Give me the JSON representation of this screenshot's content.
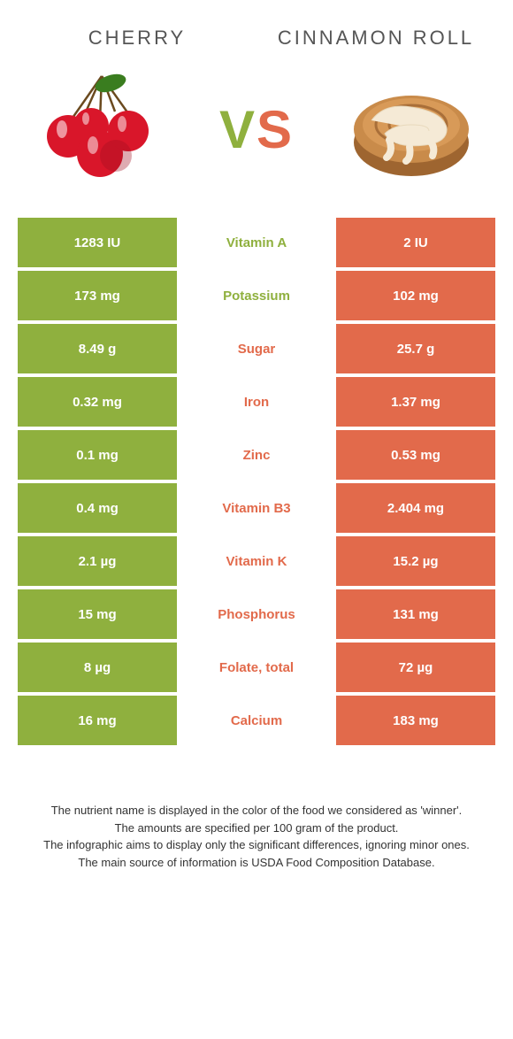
{
  "titles": {
    "left": "Cherry",
    "right": "Cinnamon Roll"
  },
  "vs": {
    "v": "V",
    "s": "S"
  },
  "colors": {
    "green": "#8fb03e",
    "orange": "#e26a4b",
    "text": "#555555",
    "cherry_red": "#d9162a",
    "cherry_dark": "#a00f1f",
    "leaf": "#3a7d1f",
    "stem": "#6b4a1f",
    "roll_body": "#c98b4a",
    "roll_dark": "#9e6530",
    "icing": "#f5ead6"
  },
  "rows": [
    {
      "name": "Vitamin A",
      "left": "1283 IU",
      "right": "2 IU",
      "winner": "left"
    },
    {
      "name": "Potassium",
      "left": "173 mg",
      "right": "102 mg",
      "winner": "left"
    },
    {
      "name": "Sugar",
      "left": "8.49 g",
      "right": "25.7 g",
      "winner": "right"
    },
    {
      "name": "Iron",
      "left": "0.32 mg",
      "right": "1.37 mg",
      "winner": "right"
    },
    {
      "name": "Zinc",
      "left": "0.1 mg",
      "right": "0.53 mg",
      "winner": "right"
    },
    {
      "name": "Vitamin B3",
      "left": "0.4 mg",
      "right": "2.404 mg",
      "winner": "right"
    },
    {
      "name": "Vitamin K",
      "left": "2.1 µg",
      "right": "15.2 µg",
      "winner": "right"
    },
    {
      "name": "Phosphorus",
      "left": "15 mg",
      "right": "131 mg",
      "winner": "right"
    },
    {
      "name": "Folate, total",
      "left": "8 µg",
      "right": "72 µg",
      "winner": "right"
    },
    {
      "name": "Calcium",
      "left": "16 mg",
      "right": "183 mg",
      "winner": "right"
    }
  ],
  "footnotes": [
    "The nutrient name is displayed in the color of the food we considered as 'winner'.",
    "The amounts are specified per 100 gram of the product.",
    "The infographic aims to display only the significant differences, ignoring minor ones.",
    "The main source of information is USDA Food Composition Database."
  ]
}
